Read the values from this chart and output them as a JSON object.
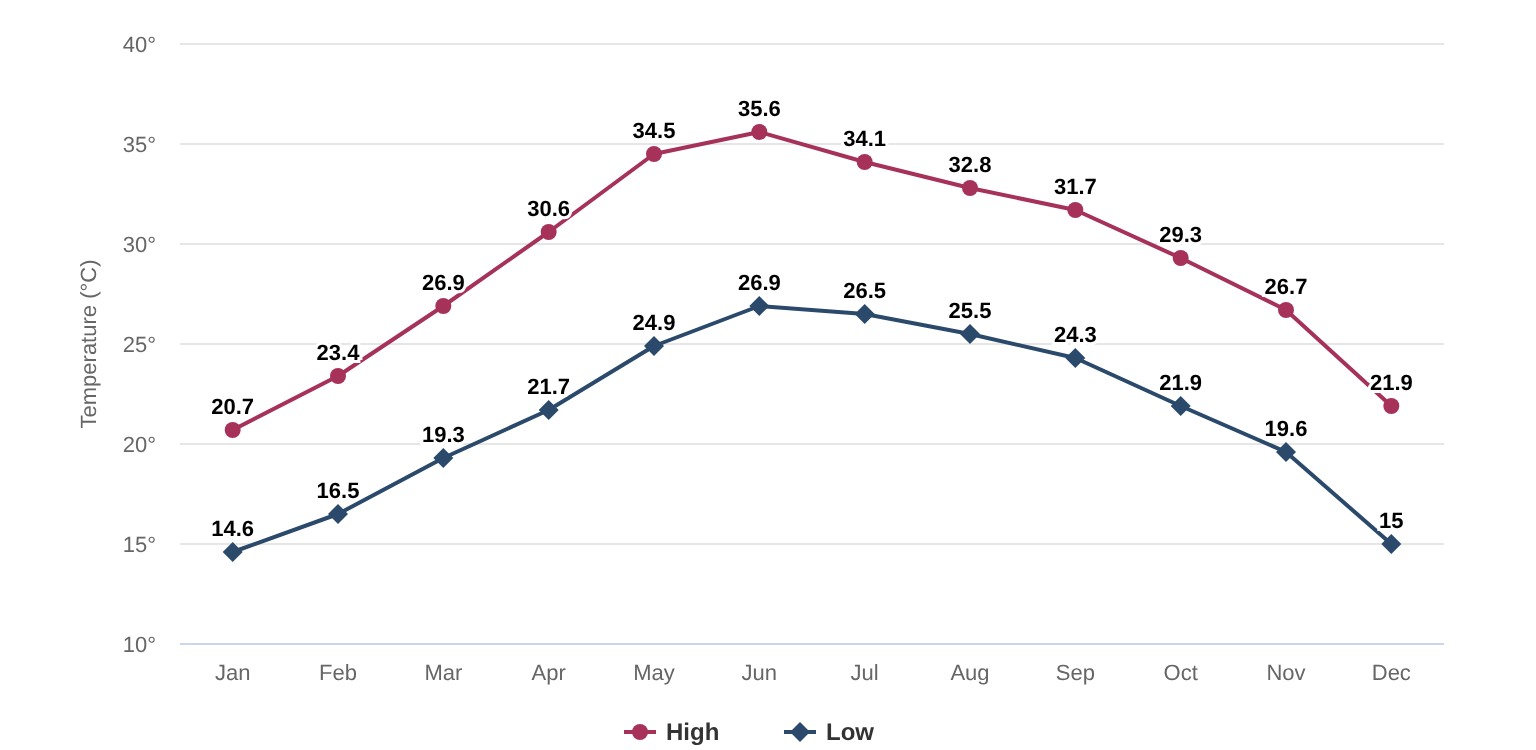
{
  "chart_data": {
    "type": "line",
    "ylabel": "Temperature (°C)",
    "categories": [
      "Jan",
      "Feb",
      "Mar",
      "Apr",
      "May",
      "Jun",
      "Jul",
      "Aug",
      "Sep",
      "Oct",
      "Nov",
      "Dec"
    ],
    "series": [
      {
        "name": "High",
        "color": "#a6325a",
        "marker": "circle",
        "values": [
          20.7,
          23.4,
          26.9,
          30.6,
          34.5,
          35.6,
          34.1,
          32.8,
          31.7,
          29.3,
          26.7,
          21.9
        ]
      },
      {
        "name": "Low",
        "color": "#2b4a6b",
        "marker": "diamond",
        "values": [
          14.6,
          16.5,
          19.3,
          21.7,
          24.9,
          26.9,
          26.5,
          25.5,
          24.3,
          21.9,
          19.6,
          15
        ]
      }
    ],
    "ylim": [
      10,
      40
    ],
    "yticks": [
      {
        "value": 10,
        "label": "10°"
      },
      {
        "value": 15,
        "label": "15°"
      },
      {
        "value": 20,
        "label": "20°"
      },
      {
        "value": 25,
        "label": "25°"
      },
      {
        "value": 30,
        "label": "30°"
      },
      {
        "value": 35,
        "label": "35°"
      },
      {
        "value": 40,
        "label": "40°"
      }
    ],
    "grid": "y",
    "legend": "bottom",
    "data_labels": true,
    "line_style": "solid"
  }
}
